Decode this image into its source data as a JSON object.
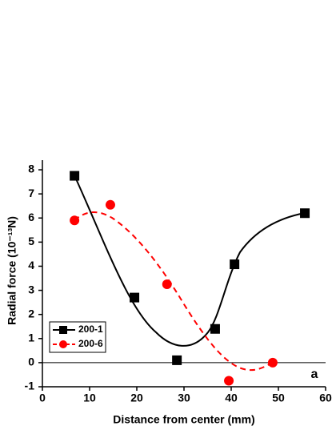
{
  "chart_data": {
    "type": "scatter",
    "xlabel": "Distance from center (mm)",
    "ylabel": "Radial force (10⁻¹³N)",
    "annotation": "a",
    "xlim": [
      0,
      60
    ],
    "xticks": [
      0,
      10,
      20,
      30,
      40,
      50,
      60
    ],
    "ylim": [
      -1,
      8.4
    ],
    "yticks": [
      -1,
      0,
      1,
      2,
      3,
      4,
      5,
      6,
      7,
      8
    ],
    "legend": "lower left",
    "series": [
      {
        "name": "200-1",
        "color": "#000000",
        "marker": "square",
        "x": [
          6.8,
          19.5,
          28.5,
          36.6,
          40.7,
          55.6
        ],
        "values": [
          7.75,
          2.7,
          0.1,
          1.4,
          4.08,
          6.2
        ]
      },
      {
        "name": "200-6",
        "color": "#ff0000",
        "marker": "circle",
        "x": [
          6.8,
          14.4,
          26.4,
          39.5,
          48.8
        ],
        "values": [
          5.9,
          6.55,
          3.25,
          -0.75,
          0.0
        ]
      }
    ]
  }
}
